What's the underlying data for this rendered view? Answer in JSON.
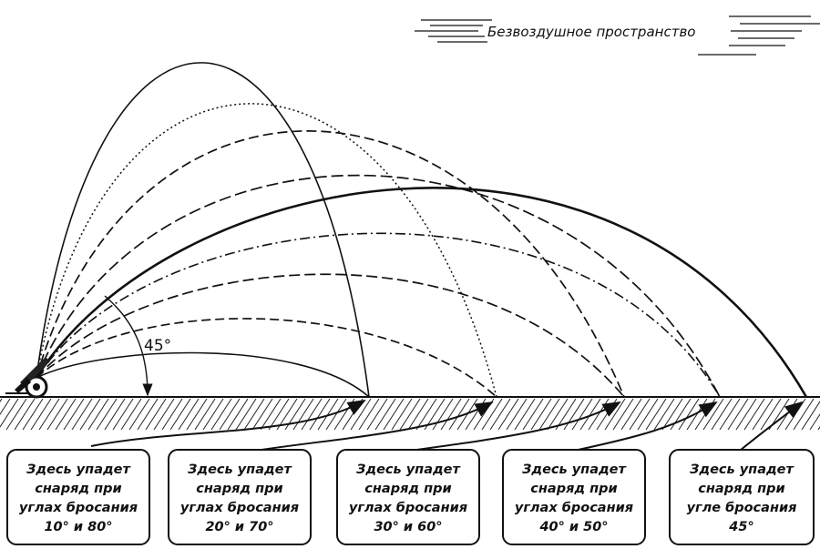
{
  "header": {
    "title": "Безвоздушное пространство"
  },
  "angle_label": "45°",
  "boxes": [
    {
      "lines": [
        "Здесь упадет",
        "снаряд при",
        "углах бросания",
        "10° и 80°"
      ]
    },
    {
      "lines": [
        "Здесь упадет",
        "снаряд при",
        "углах бросания",
        "20° и 70°"
      ]
    },
    {
      "lines": [
        "Здесь упадет",
        "снаряд при",
        "углах бросания",
        "30° и 60°"
      ]
    },
    {
      "lines": [
        "Здесь упадет",
        "снаряд при",
        "углах бросания",
        "40° и 50°"
      ]
    },
    {
      "lines": [
        "Здесь упадет",
        "снаряд при",
        "угле бросания",
        "45°"
      ]
    }
  ],
  "trajectories": [
    {
      "angle": 80,
      "style": "solid",
      "lands_at": "box-1"
    },
    {
      "angle": 70,
      "style": "dotted",
      "lands_at": "box-2"
    },
    {
      "angle": 60,
      "style": "dashed",
      "lands_at": "box-3"
    },
    {
      "angle": 50,
      "style": "dashed",
      "lands_at": "box-4"
    },
    {
      "angle": 45,
      "style": "solid-bold",
      "lands_at": "box-5"
    },
    {
      "angle": 40,
      "style": "dash-dot",
      "lands_at": "box-4"
    },
    {
      "angle": 30,
      "style": "dashed",
      "lands_at": "box-3"
    },
    {
      "angle": 20,
      "style": "dashed",
      "lands_at": "box-2"
    },
    {
      "angle": 10,
      "style": "solid",
      "lands_at": "box-1"
    }
  ]
}
